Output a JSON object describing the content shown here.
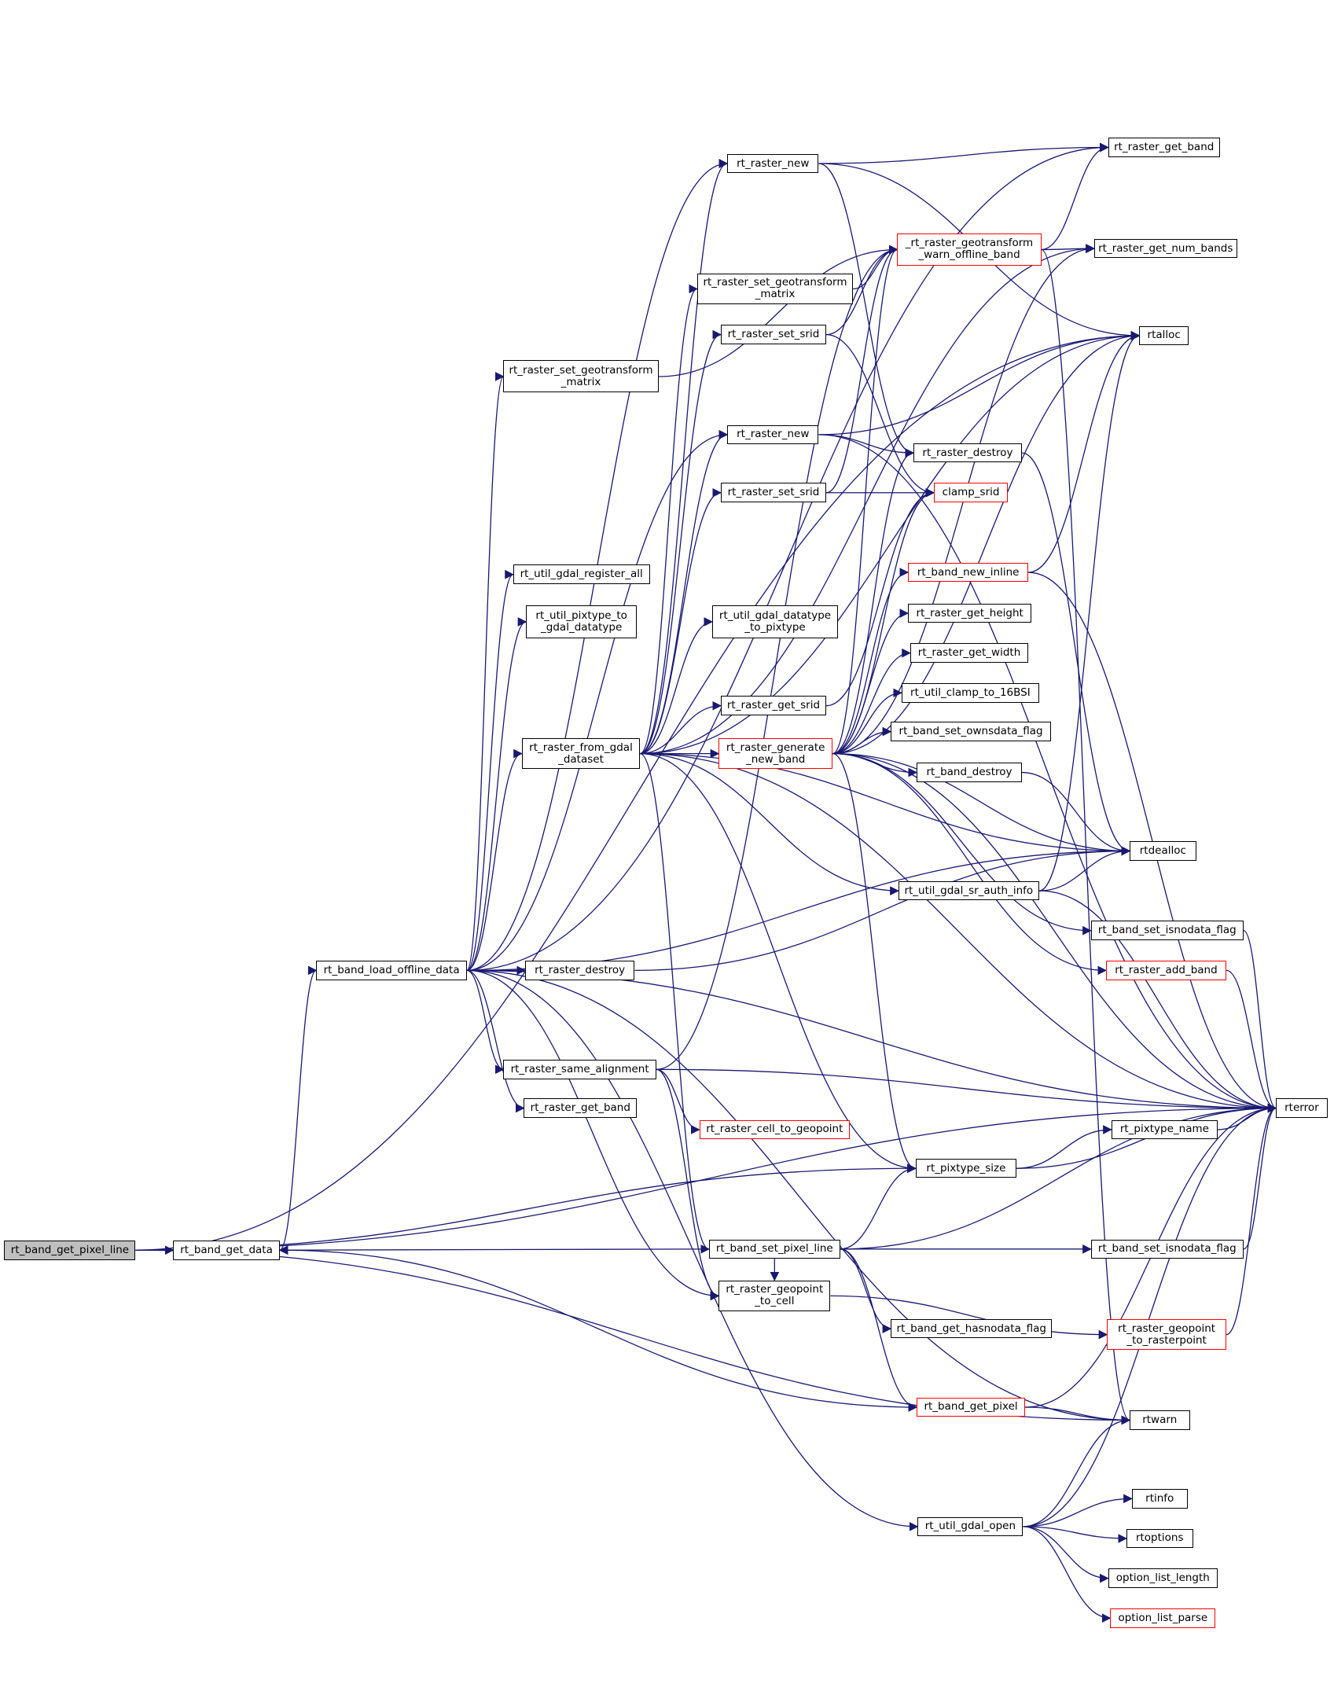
{
  "graph": {
    "edge_color": "#191970",
    "root": "rt_band_get_pixel_line",
    "nodes": [
      {
        "id": "n1",
        "label": "rt_band_get_pixel_line",
        "style": "root"
      },
      {
        "id": "n2",
        "label": "rt_band_get_data"
      },
      {
        "id": "n3",
        "label": "rt_band_load_offline_data"
      },
      {
        "id": "n4",
        "label": "rt_raster_destroy"
      },
      {
        "id": "n5",
        "label": "rt_raster_same_alignment"
      },
      {
        "id": "n6",
        "label": "rt_raster_get_band"
      },
      {
        "id": "n7",
        "label": "rt_raster_set_geotransform\n_matrix"
      },
      {
        "id": "n8",
        "label": "rt_util_gdal_register_all"
      },
      {
        "id": "n9",
        "label": "rt_util_pixtype_to\n_gdal_datatype"
      },
      {
        "id": "n10",
        "label": "rt_raster_from_gdal\n_dataset"
      },
      {
        "id": "n11",
        "label": "rt_raster_new"
      },
      {
        "id": "n12",
        "label": "rt_raster_set_geotransform\n_matrix"
      },
      {
        "id": "n13",
        "label": "rt_raster_set_srid"
      },
      {
        "id": "n14",
        "label": "rt_raster_new"
      },
      {
        "id": "n15",
        "label": "rt_raster_set_srid"
      },
      {
        "id": "n16",
        "label": "rt_util_gdal_datatype\n_to_pixtype"
      },
      {
        "id": "n17",
        "label": "rt_raster_get_srid"
      },
      {
        "id": "n18",
        "label": "_rt_raster_geotransform\n_warn_offline_band",
        "style": "red"
      },
      {
        "id": "n19",
        "label": "rt_raster_generate\n_new_band",
        "style": "red"
      },
      {
        "id": "n20",
        "label": "rt_raster_cell_to_geopoint",
        "style": "red"
      },
      {
        "id": "n21",
        "label": "rt_raster_geopoint\n_to_cell"
      },
      {
        "id": "n22",
        "label": "rt_band_set_pixel_line"
      },
      {
        "id": "n23",
        "label": "rt_pixtype_size"
      },
      {
        "id": "n24",
        "label": "rt_raster_get_band"
      },
      {
        "id": "n25",
        "label": "rt_raster_get_num_bands"
      },
      {
        "id": "n26",
        "label": "rtalloc"
      },
      {
        "id": "n27",
        "label": "rt_raster_destroy"
      },
      {
        "id": "n28",
        "label": "clamp_srid",
        "style": "red"
      },
      {
        "id": "n29",
        "label": "rt_band_new_inline",
        "style": "red"
      },
      {
        "id": "n30",
        "label": "rt_raster_get_height"
      },
      {
        "id": "n31",
        "label": "rt_raster_get_width"
      },
      {
        "id": "n32",
        "label": "rt_util_clamp_to_16BSI"
      },
      {
        "id": "n33",
        "label": "rt_band_set_ownsdata_flag"
      },
      {
        "id": "n34",
        "label": "rt_band_destroy"
      },
      {
        "id": "n35",
        "label": "rtdealloc"
      },
      {
        "id": "n36",
        "label": "rt_util_gdal_sr_auth_info"
      },
      {
        "id": "n37",
        "label": "rt_band_set_isnodata_flag"
      },
      {
        "id": "n38",
        "label": "rt_raster_add_band",
        "style": "red"
      },
      {
        "id": "n39",
        "label": "rterror"
      },
      {
        "id": "n40",
        "label": "rt_pixtype_name"
      },
      {
        "id": "n41",
        "label": "rt_band_set_isnodata_flag"
      },
      {
        "id": "n42",
        "label": "rt_band_get_hasnodata_flag"
      },
      {
        "id": "n43",
        "label": "rt_raster_geopoint\n_to_rasterpoint",
        "style": "red"
      },
      {
        "id": "n44",
        "label": "rt_band_get_pixel",
        "style": "red"
      },
      {
        "id": "n45",
        "label": "rtwarn"
      },
      {
        "id": "n46",
        "label": "rt_util_gdal_open"
      },
      {
        "id": "n47",
        "label": "rtinfo"
      },
      {
        "id": "n48",
        "label": "rtoptions"
      },
      {
        "id": "n49",
        "label": "option_list_length"
      },
      {
        "id": "n50",
        "label": "option_list_parse",
        "style": "red"
      }
    ],
    "edges": [
      [
        "n1",
        "n2"
      ],
      [
        "n1",
        "n26"
      ],
      [
        "n1",
        "n39"
      ],
      [
        "n1",
        "n23"
      ],
      [
        "n1",
        "n45"
      ],
      [
        "n2",
        "n3"
      ],
      [
        "n3",
        "n4"
      ],
      [
        "n3",
        "n5"
      ],
      [
        "n3",
        "n6"
      ],
      [
        "n3",
        "n7"
      ],
      [
        "n3",
        "n8"
      ],
      [
        "n3",
        "n9"
      ],
      [
        "n3",
        "n10"
      ],
      [
        "n3",
        "n24"
      ],
      [
        "n3",
        "n35"
      ],
      [
        "n3",
        "n21"
      ],
      [
        "n3",
        "n45"
      ],
      [
        "n3",
        "n46"
      ],
      [
        "n3",
        "n39"
      ],
      [
        "n3",
        "n11"
      ],
      [
        "n3",
        "n14"
      ],
      [
        "n4",
        "n35"
      ],
      [
        "n5",
        "n20"
      ],
      [
        "n5",
        "n21"
      ],
      [
        "n5",
        "n39"
      ],
      [
        "n5",
        "n18"
      ],
      [
        "n7",
        "n18"
      ],
      [
        "n10",
        "n11"
      ],
      [
        "n10",
        "n12"
      ],
      [
        "n10",
        "n13"
      ],
      [
        "n10",
        "n14"
      ],
      [
        "n10",
        "n15"
      ],
      [
        "n10",
        "n16"
      ],
      [
        "n10",
        "n17"
      ],
      [
        "n10",
        "n19"
      ],
      [
        "n10",
        "n25"
      ],
      [
        "n10",
        "n26"
      ],
      [
        "n10",
        "n35"
      ],
      [
        "n10",
        "n36"
      ],
      [
        "n10",
        "n39"
      ],
      [
        "n10",
        "n23"
      ],
      [
        "n10",
        "n22"
      ],
      [
        "n11",
        "n24"
      ],
      [
        "n11",
        "n26"
      ],
      [
        "n11",
        "n27"
      ],
      [
        "n12",
        "n18"
      ],
      [
        "n13",
        "n18"
      ],
      [
        "n13",
        "n28"
      ],
      [
        "n14",
        "n26"
      ],
      [
        "n14",
        "n27"
      ],
      [
        "n14",
        "n39"
      ],
      [
        "n15",
        "n18"
      ],
      [
        "n15",
        "n28"
      ],
      [
        "n17",
        "n28"
      ],
      [
        "n18",
        "n24"
      ],
      [
        "n18",
        "n25"
      ],
      [
        "n18",
        "n45"
      ],
      [
        "n19",
        "n18"
      ],
      [
        "n19",
        "n25"
      ],
      [
        "n19",
        "n27"
      ],
      [
        "n19",
        "n28"
      ],
      [
        "n19",
        "n29"
      ],
      [
        "n19",
        "n30"
      ],
      [
        "n19",
        "n31"
      ],
      [
        "n19",
        "n32"
      ],
      [
        "n19",
        "n33"
      ],
      [
        "n19",
        "n34"
      ],
      [
        "n19",
        "n35"
      ],
      [
        "n19",
        "n37"
      ],
      [
        "n19",
        "n38"
      ],
      [
        "n19",
        "n39"
      ],
      [
        "n19",
        "n23"
      ],
      [
        "n19",
        "n26"
      ],
      [
        "n21",
        "n43"
      ],
      [
        "n22",
        "n2"
      ],
      [
        "n22",
        "n23"
      ],
      [
        "n22",
        "n41"
      ],
      [
        "n22",
        "n39"
      ],
      [
        "n22",
        "n42"
      ],
      [
        "n22",
        "n44"
      ],
      [
        "n22",
        "n21"
      ],
      [
        "n23",
        "n40"
      ],
      [
        "n23",
        "n39"
      ],
      [
        "n27",
        "n35"
      ],
      [
        "n29",
        "n26"
      ],
      [
        "n29",
        "n39"
      ],
      [
        "n34",
        "n35"
      ],
      [
        "n36",
        "n26"
      ],
      [
        "n36",
        "n35"
      ],
      [
        "n36",
        "n39"
      ],
      [
        "n37",
        "n39"
      ],
      [
        "n38",
        "n39"
      ],
      [
        "n40",
        "n39"
      ],
      [
        "n41",
        "n39"
      ],
      [
        "n43",
        "n39"
      ],
      [
        "n44",
        "n2"
      ],
      [
        "n44",
        "n45"
      ],
      [
        "n44",
        "n39"
      ],
      [
        "n46",
        "n45"
      ],
      [
        "n46",
        "n39"
      ],
      [
        "n46",
        "n47"
      ],
      [
        "n46",
        "n48"
      ],
      [
        "n46",
        "n49"
      ],
      [
        "n46",
        "n50"
      ]
    ]
  }
}
